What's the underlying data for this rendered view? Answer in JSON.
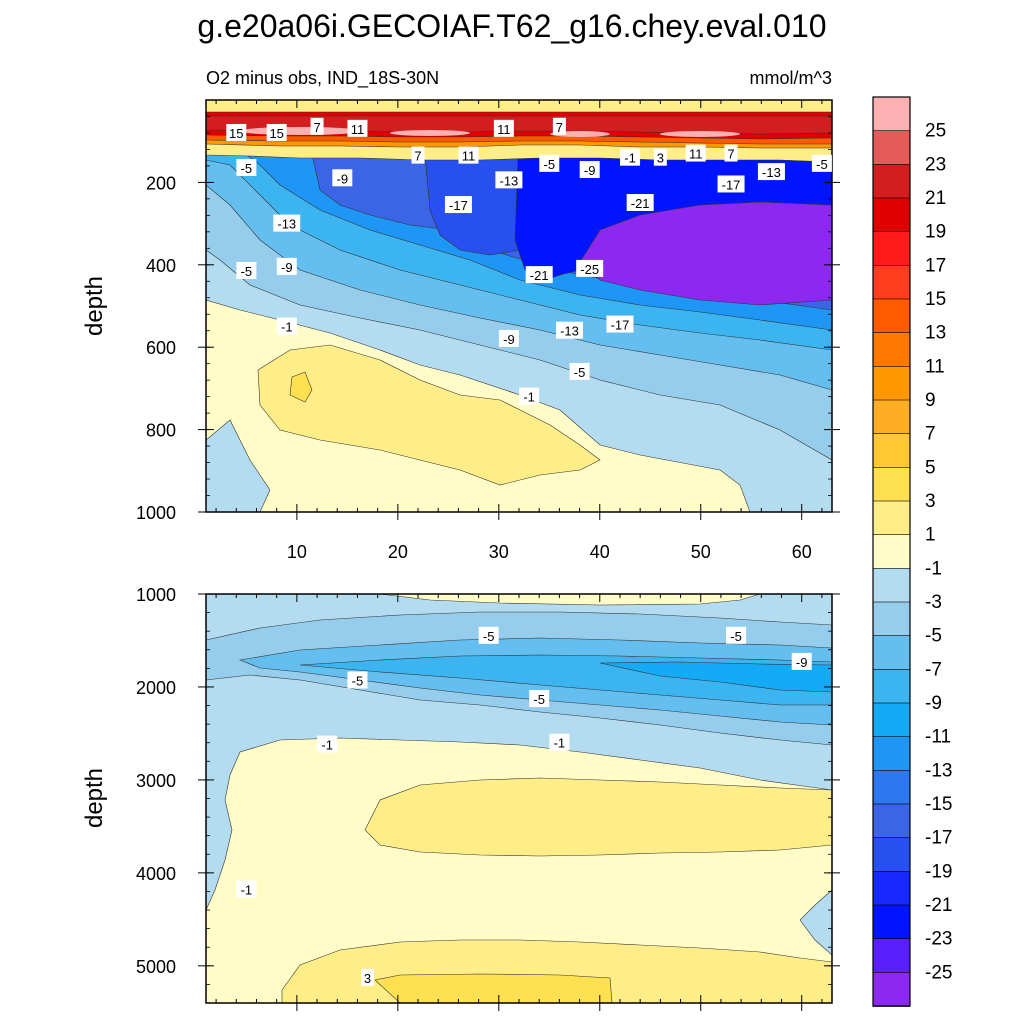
{
  "chart_data": {
    "type": "contour",
    "title": "g.e20a06i.GECOIAF.T62_g16.chey.eval.010",
    "subtitle_left": "O2 minus obs, IND_18S-30N",
    "subtitle_right": "mmol/m^3",
    "colorbar": {
      "levels": [
        "25",
        "23",
        "21",
        "19",
        "17",
        "15",
        "13",
        "11",
        "9",
        "7",
        "5",
        "3",
        "1",
        "-1",
        "-3",
        "-5",
        "-7",
        "-9",
        "-11",
        "-13",
        "-15",
        "-17",
        "-19",
        "-21",
        "-23",
        "-25"
      ],
      "colors": [
        "#fbb1b2",
        "#e65a5a",
        "#d21e1e",
        "#e10000",
        "#ff1a1a",
        "#ff3c1e",
        "#ff5a00",
        "#ff7800",
        "#ff9800",
        "#ffad22",
        "#ffc832",
        "#ffe050",
        "#ffee88",
        "#fffcc8",
        "#b4dcf0",
        "#96cdec",
        "#64bef0",
        "#3cb4f0",
        "#14aaf5",
        "#1e96f5",
        "#2d78f0",
        "#3c64e6",
        "#2850f0",
        "#1428ff",
        "#0014ff",
        "#5a1eff",
        "#8c28f0"
      ]
    },
    "upper_panel": {
      "ylabel": "depth",
      "x_range": [
        1,
        63
      ],
      "y_range": [
        0,
        1000
      ],
      "x_ticks": [
        10,
        20,
        30,
        40,
        50,
        60
      ],
      "y_ticks": [
        200,
        400,
        600,
        800,
        1000
      ],
      "contour_labels": [
        {
          "text": "15",
          "x": 4,
          "y": 80
        },
        {
          "text": "15",
          "x": 8,
          "y": 80
        },
        {
          "text": "7",
          "x": 12,
          "y": 65
        },
        {
          "text": "11",
          "x": 16,
          "y": 70
        },
        {
          "text": "11",
          "x": 30.5,
          "y": 70
        },
        {
          "text": "7",
          "x": 36,
          "y": 65
        },
        {
          "text": "7",
          "x": 22,
          "y": 135
        },
        {
          "text": "11",
          "x": 27,
          "y": 135
        },
        {
          "text": "-5",
          "x": 5,
          "y": 165
        },
        {
          "text": "-9",
          "x": 14.5,
          "y": 190
        },
        {
          "text": "-13",
          "x": 31,
          "y": 195
        },
        {
          "text": "-17",
          "x": 26,
          "y": 255
        },
        {
          "text": "-5",
          "x": 35,
          "y": 155
        },
        {
          "text": "-9",
          "x": 39,
          "y": 170
        },
        {
          "text": "-1",
          "x": 43,
          "y": 140
        },
        {
          "text": "3",
          "x": 46,
          "y": 140
        },
        {
          "text": "11",
          "x": 49.5,
          "y": 130
        },
        {
          "text": "7",
          "x": 53,
          "y": 130
        },
        {
          "text": "-13",
          "x": 57,
          "y": 175
        },
        {
          "text": "-5",
          "x": 62,
          "y": 155
        },
        {
          "text": "-21",
          "x": 44,
          "y": 250
        },
        {
          "text": "-17",
          "x": 53,
          "y": 205
        },
        {
          "text": "-13",
          "x": 9,
          "y": 300
        },
        {
          "text": "-5",
          "x": 5,
          "y": 415
        },
        {
          "text": "-9",
          "x": 9,
          "y": 405
        },
        {
          "text": "-21",
          "x": 34,
          "y": 425
        },
        {
          "text": "-25",
          "x": 39,
          "y": 410
        },
        {
          "text": "-1",
          "x": 9,
          "y": 550
        },
        {
          "text": "-9",
          "x": 31,
          "y": 580
        },
        {
          "text": "-13",
          "x": 37,
          "y": 560
        },
        {
          "text": "-17",
          "x": 42,
          "y": 545
        },
        {
          "text": "-5",
          "x": 38,
          "y": 660
        },
        {
          "text": "-1",
          "x": 33,
          "y": 720
        }
      ]
    },
    "lower_panel": {
      "ylabel": "depth",
      "x_range": [
        1,
        63
      ],
      "y_range": [
        1000,
        5400
      ],
      "y_ticks": [
        1000,
        2000,
        3000,
        4000,
        5000
      ],
      "contour_labels": [
        {
          "text": "-5",
          "x": 29,
          "y": 1450
        },
        {
          "text": "-5",
          "x": 53.5,
          "y": 1450
        },
        {
          "text": "-9",
          "x": 60,
          "y": 1730
        },
        {
          "text": "-5",
          "x": 16,
          "y": 1930
        },
        {
          "text": "-5",
          "x": 34,
          "y": 2130
        },
        {
          "text": "-1",
          "x": 13,
          "y": 2620
        },
        {
          "text": "-1",
          "x": 36,
          "y": 2600
        },
        {
          "text": "-1",
          "x": 5,
          "y": 4180
        },
        {
          "text": "3",
          "x": 17,
          "y": 5130
        }
      ]
    }
  }
}
